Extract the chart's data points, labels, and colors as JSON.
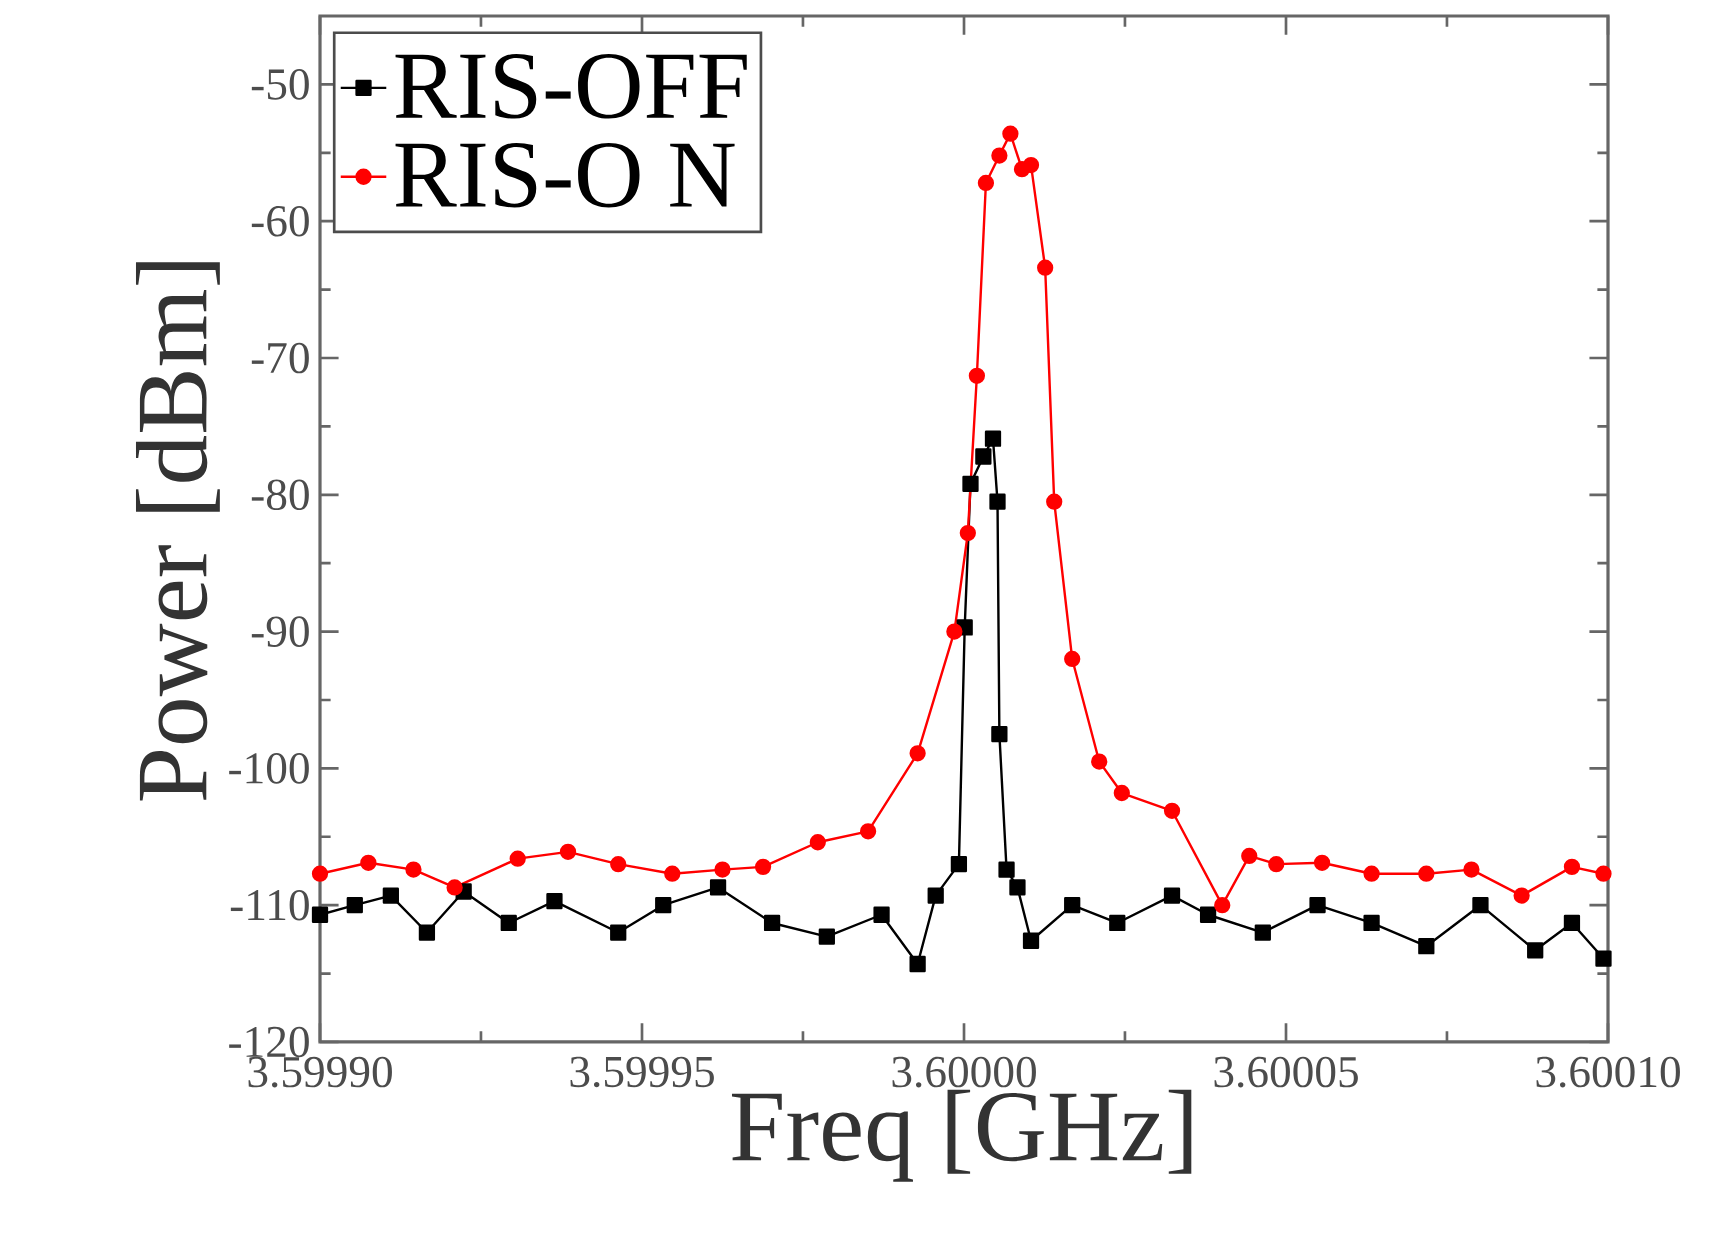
{
  "chart_data": {
    "type": "line",
    "xlabel": "Freq [GHz]",
    "ylabel": "Power [dBm]",
    "xlim": [
      3.5999,
      3.6001
    ],
    "ylim": [
      -120,
      -45
    ],
    "xticks": [
      {
        "value": 3.5999,
        "label": "3.59990"
      },
      {
        "value": 3.59995,
        "label": "3.59995"
      },
      {
        "value": 3.6,
        "label": "3.60000"
      },
      {
        "value": 3.60005,
        "label": "3.60005"
      },
      {
        "value": 3.6001,
        "label": "3.60010"
      }
    ],
    "yticks": [
      -120,
      -110,
      -100,
      -90,
      -80,
      -70,
      -60,
      -50
    ],
    "grid": false,
    "legend": "top left",
    "series": [
      {
        "name": "RIS-OFF",
        "color": "#000000",
        "marker": "square",
        "x": [
          3.5999,
          3.5999054,
          3.599911,
          3.5999166,
          3.5999223,
          3.5999293,
          3.5999364,
          3.5999463,
          3.5999533,
          3.5999618,
          3.5999702,
          3.5999787,
          3.5999872,
          3.5999928,
          3.5999956,
          3.5999992,
          3.6000001,
          3.600001,
          3.600003,
          3.6000045,
          3.6000052,
          3.6000055,
          3.6000066,
          3.6000083,
          3.6000104,
          3.6000168,
          3.6000238,
          3.6000323,
          3.6000379,
          3.6000464,
          3.6000549,
          3.6000633,
          3.6000718,
          3.6000802,
          3.6000887,
          3.6000944,
          3.6000993
        ],
        "values": [
          -110.7,
          -110.0,
          -109.3,
          -112.0,
          -109.0,
          -111.3,
          -109.7,
          -112.0,
          -110.0,
          -108.7,
          -111.3,
          -112.3,
          -110.7,
          -114.3,
          -109.3,
          -107.0,
          -89.7,
          -79.2,
          -77.2,
          -75.9,
          -80.5,
          -97.5,
          -107.4,
          -108.7,
          -112.6,
          -110.0,
          -111.3,
          -109.3,
          -110.7,
          -112.0,
          -110.0,
          -111.3,
          -113.0,
          -110.0,
          -113.3,
          -111.3,
          -113.9
        ]
      },
      {
        "name": "RIS-O N",
        "color": "#ff0000",
        "marker": "circle",
        "x": [
          3.5999,
          3.5999075,
          3.5999145,
          3.5999209,
          3.5999307,
          3.5999385,
          3.5999463,
          3.5999547,
          3.5999625,
          3.5999688,
          3.5999773,
          3.5999851,
          3.5999928,
          3.5999985,
          3.6000006,
          3.600002,
          3.6000034,
          3.6000055,
          3.6000072,
          3.600009,
          3.6000104,
          3.6000126,
          3.600014,
          3.6000168,
          3.600021,
          3.6000245,
          3.6000323,
          3.6000401,
          3.6000443,
          3.6000485,
          3.6000556,
          3.6000633,
          3.6000718,
          3.6000788,
          3.6000866,
          3.6000944,
          3.6000993
        ],
        "values": [
          -107.7,
          -106.9,
          -107.4,
          -108.7,
          -106.6,
          -106.1,
          -107.0,
          -107.7,
          -107.4,
          -107.2,
          -105.4,
          -104.6,
          -98.9,
          -90.0,
          -82.8,
          -71.3,
          -57.2,
          -55.2,
          -53.6,
          -56.2,
          -55.9,
          -63.4,
          -80.5,
          -92.0,
          -99.5,
          -101.8,
          -103.1,
          -110.0,
          -106.4,
          -107.0,
          -106.9,
          -107.7,
          -107.7,
          -107.4,
          -109.3,
          -107.2,
          -107.7
        ]
      }
    ]
  }
}
